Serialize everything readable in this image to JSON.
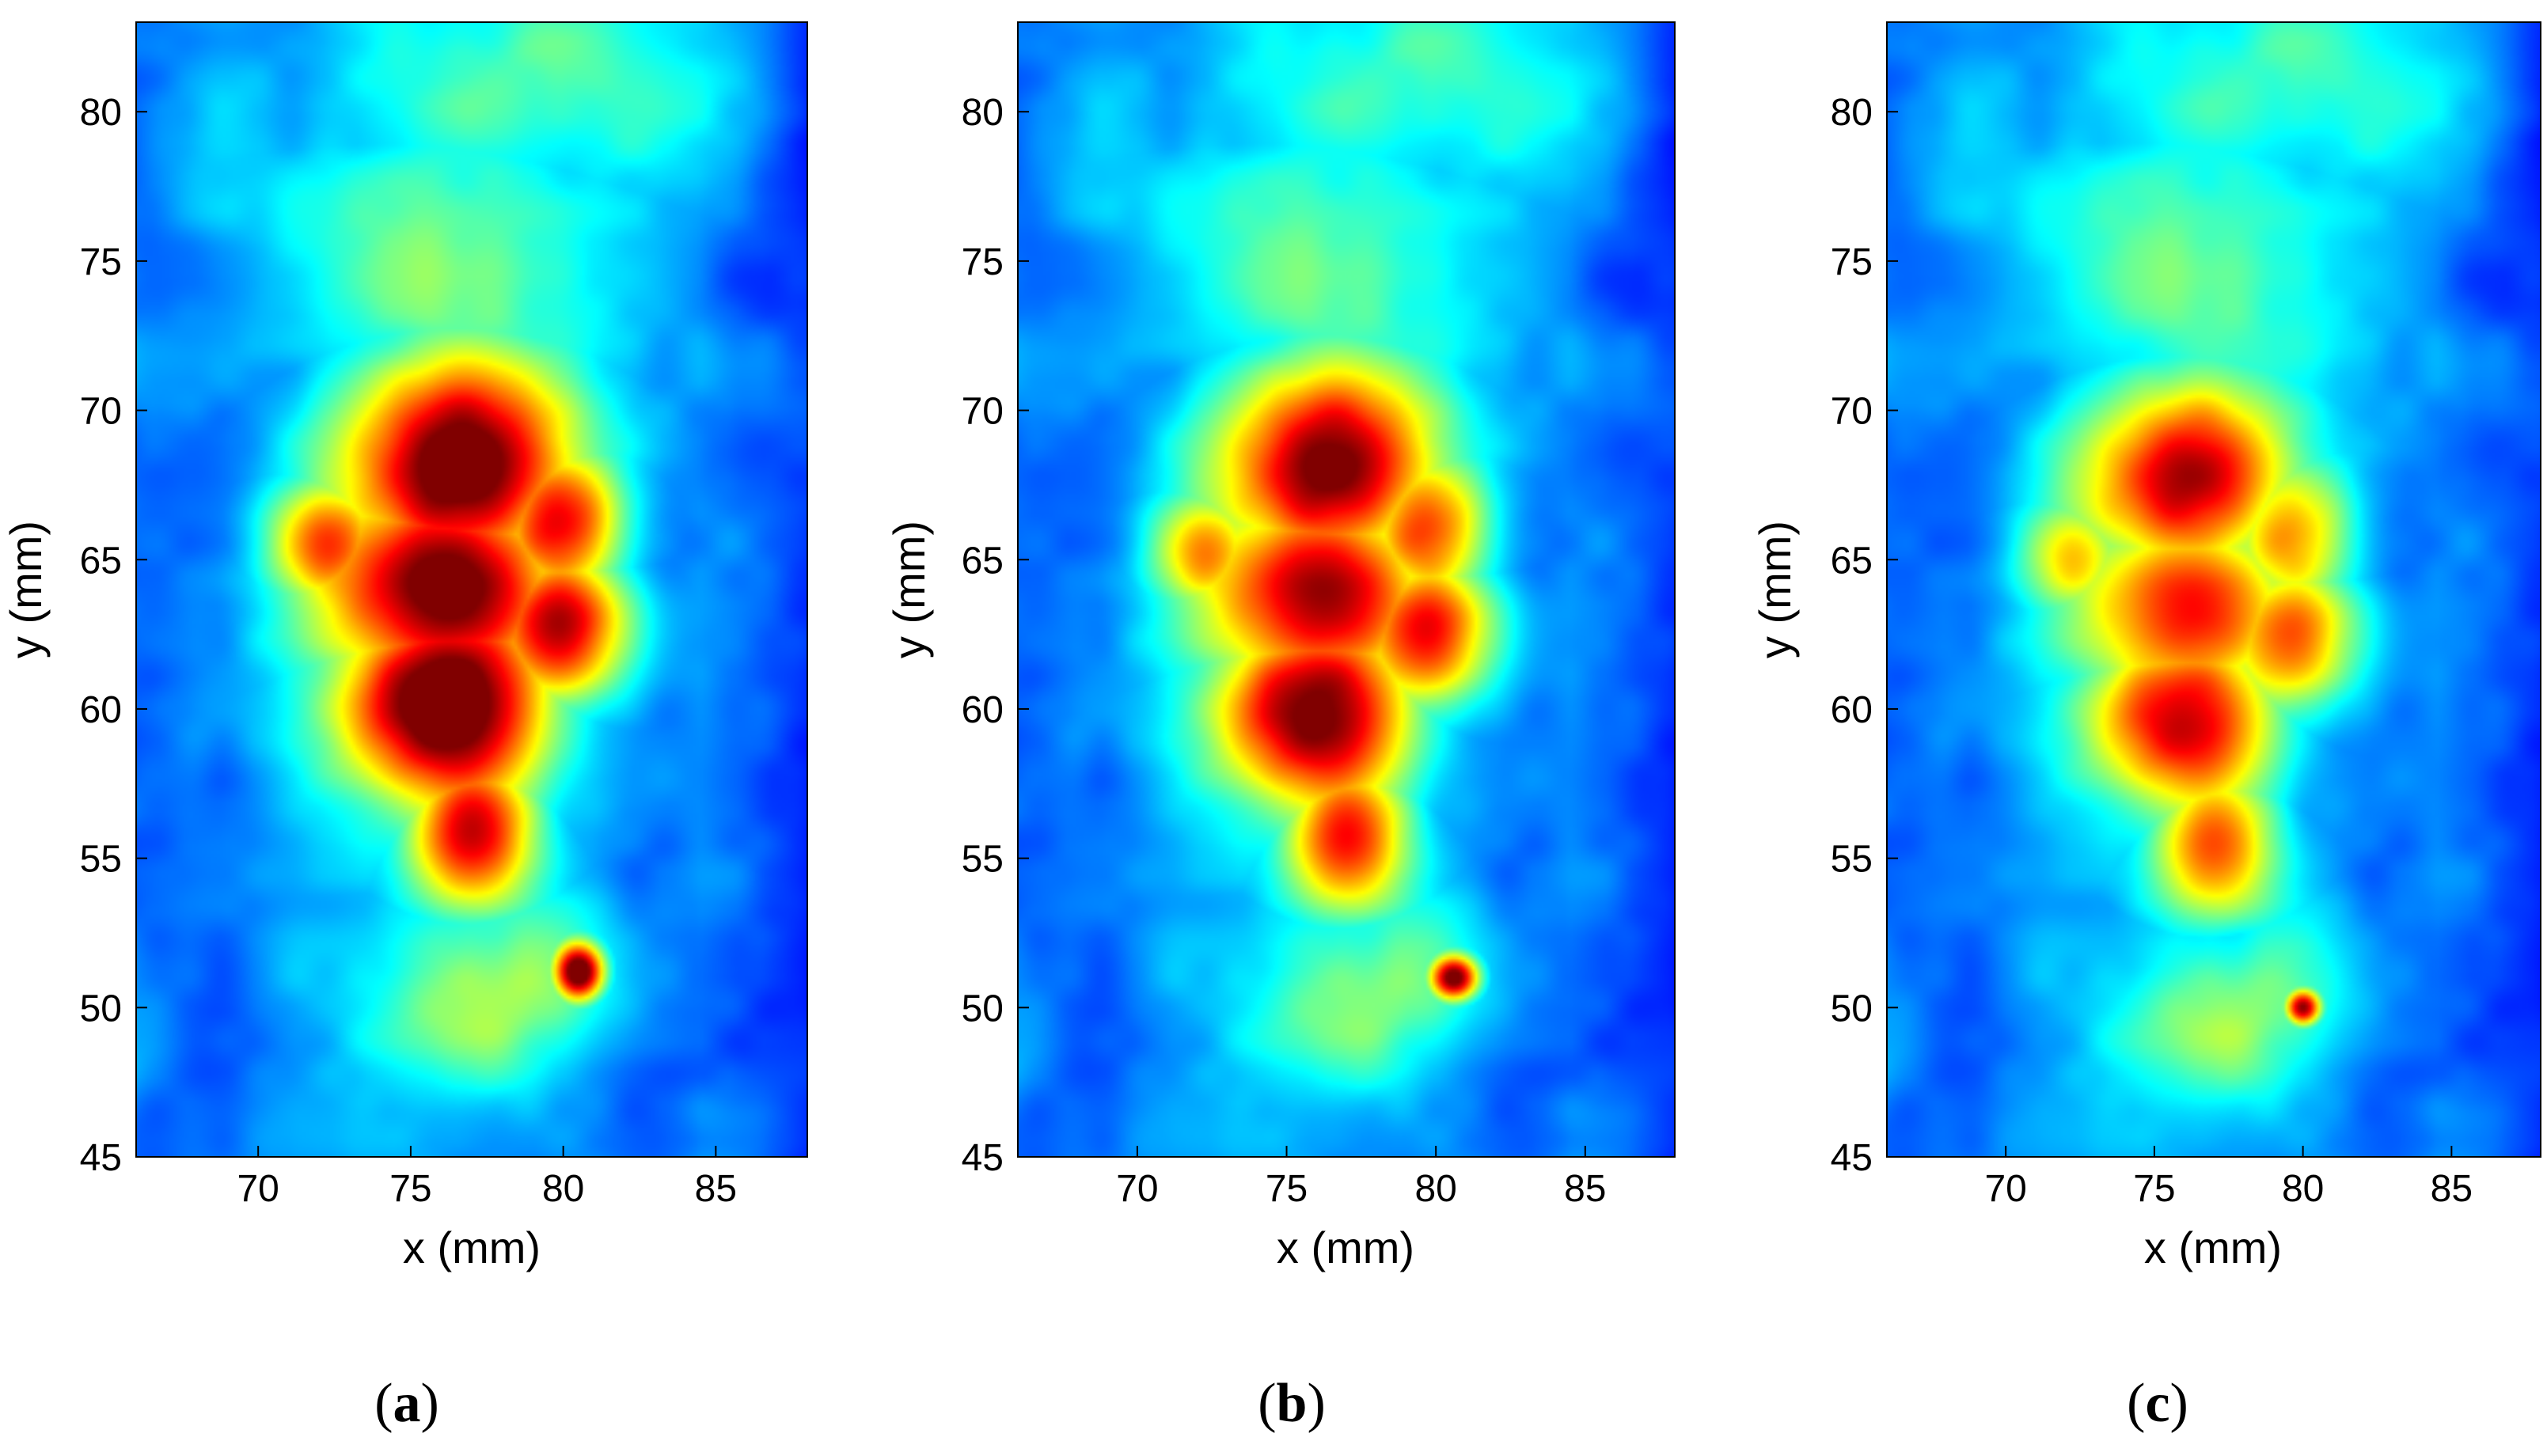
{
  "chart_data": [
    {
      "type": "heatmap",
      "panel": "a",
      "xlabel": "x (mm)",
      "ylabel": "y (mm)",
      "xlim": [
        66,
        88
      ],
      "ylim": [
        45,
        83
      ],
      "xticks": [
        70,
        75,
        80,
        85
      ],
      "yticks": [
        45,
        50,
        55,
        60,
        65,
        70,
        75,
        80
      ],
      "colormap": "jet",
      "intensity_scale": 1.0,
      "hotspots": [
        {
          "x": 76.5,
          "y": 68.0,
          "sx": 2.8,
          "sy": 2.8,
          "v": 1.0
        },
        {
          "x": 76.0,
          "y": 64.2,
          "sx": 3.0,
          "sy": 2.6,
          "v": 1.0
        },
        {
          "x": 76.2,
          "y": 60.2,
          "sx": 2.6,
          "sy": 2.8,
          "v": 1.0
        },
        {
          "x": 79.8,
          "y": 66.2,
          "sx": 1.6,
          "sy": 1.8,
          "v": 0.82
        },
        {
          "x": 79.8,
          "y": 62.8,
          "sx": 1.7,
          "sy": 2.0,
          "v": 0.82
        },
        {
          "x": 72.5,
          "y": 65.5,
          "sx": 1.6,
          "sy": 1.6,
          "v": 0.65
        },
        {
          "x": 77.0,
          "y": 56.0,
          "sx": 1.6,
          "sy": 2.0,
          "v": 0.78
        },
        {
          "x": 80.5,
          "y": 51.2,
          "sx": 0.6,
          "sy": 0.7,
          "v": 1.0
        },
        {
          "x": 77.5,
          "y": 50.5,
          "sx": 2.8,
          "sy": 2.2,
          "v": 0.38
        }
      ],
      "background_plume": [
        {
          "x": 76.5,
          "y": 75.0,
          "sx": 4.0,
          "sy": 4.0,
          "v": 0.28
        },
        {
          "x": 78.0,
          "y": 81.0,
          "sx": 5.0,
          "sy": 3.0,
          "v": 0.25
        }
      ]
    },
    {
      "type": "heatmap",
      "panel": "b",
      "xlabel": "x (mm)",
      "ylabel": "y (mm)",
      "xlim": [
        66,
        88
      ],
      "ylim": [
        45,
        83
      ],
      "xticks": [
        70,
        75,
        80,
        85
      ],
      "yticks": [
        45,
        50,
        55,
        60,
        65,
        70,
        75,
        80
      ],
      "colormap": "jet",
      "intensity_scale": 0.93,
      "hotspots": [
        {
          "x": 76.3,
          "y": 68.0,
          "sx": 2.7,
          "sy": 2.6,
          "v": 1.0
        },
        {
          "x": 76.0,
          "y": 64.0,
          "sx": 2.9,
          "sy": 2.5,
          "v": 0.96
        },
        {
          "x": 76.0,
          "y": 59.8,
          "sx": 2.5,
          "sy": 2.6,
          "v": 0.96
        },
        {
          "x": 79.6,
          "y": 66.0,
          "sx": 1.6,
          "sy": 1.8,
          "v": 0.78
        },
        {
          "x": 79.6,
          "y": 62.6,
          "sx": 1.7,
          "sy": 2.0,
          "v": 0.8
        },
        {
          "x": 72.5,
          "y": 65.2,
          "sx": 1.5,
          "sy": 1.5,
          "v": 0.6
        },
        {
          "x": 77.0,
          "y": 55.8,
          "sx": 1.6,
          "sy": 2.0,
          "v": 0.76
        },
        {
          "x": 80.6,
          "y": 51.0,
          "sx": 0.6,
          "sy": 0.55,
          "v": 1.0
        },
        {
          "x": 77.5,
          "y": 50.5,
          "sx": 2.8,
          "sy": 2.2,
          "v": 0.36
        }
      ],
      "background_plume": [
        {
          "x": 76.5,
          "y": 75.0,
          "sx": 4.0,
          "sy": 4.0,
          "v": 0.27
        },
        {
          "x": 78.0,
          "y": 81.0,
          "sx": 5.0,
          "sy": 3.0,
          "v": 0.24
        }
      ]
    },
    {
      "type": "heatmap",
      "panel": "c",
      "xlabel": "x (mm)",
      "ylabel": "y (mm)",
      "xlim": [
        66,
        88
      ],
      "ylim": [
        45,
        83
      ],
      "xticks": [
        70,
        75,
        80,
        85
      ],
      "yticks": [
        45,
        50,
        55,
        60,
        65,
        70,
        75,
        80
      ],
      "colormap": "jet",
      "intensity_scale": 0.86,
      "hotspots": [
        {
          "x": 76.0,
          "y": 67.6,
          "sx": 2.6,
          "sy": 2.4,
          "v": 1.0
        },
        {
          "x": 76.0,
          "y": 63.5,
          "sx": 2.8,
          "sy": 2.4,
          "v": 0.88
        },
        {
          "x": 76.0,
          "y": 59.5,
          "sx": 2.4,
          "sy": 2.4,
          "v": 0.9
        },
        {
          "x": 79.5,
          "y": 65.8,
          "sx": 1.6,
          "sy": 1.8,
          "v": 0.72
        },
        {
          "x": 79.5,
          "y": 62.4,
          "sx": 1.7,
          "sy": 2.0,
          "v": 0.74
        },
        {
          "x": 72.5,
          "y": 65.0,
          "sx": 1.5,
          "sy": 1.5,
          "v": 0.55
        },
        {
          "x": 77.0,
          "y": 55.5,
          "sx": 1.6,
          "sy": 2.0,
          "v": 0.72
        },
        {
          "x": 80.0,
          "y": 50.0,
          "sx": 0.45,
          "sy": 0.45,
          "v": 1.0
        },
        {
          "x": 77.5,
          "y": 49.8,
          "sx": 2.8,
          "sy": 2.2,
          "v": 0.4
        }
      ],
      "background_plume": [
        {
          "x": 76.5,
          "y": 75.0,
          "sx": 4.0,
          "sy": 4.0,
          "v": 0.3
        },
        {
          "x": 78.0,
          "y": 81.0,
          "sx": 5.0,
          "sy": 3.0,
          "v": 0.26
        }
      ]
    }
  ],
  "captions": [
    {
      "open": "(",
      "letter": "a",
      "close": ")"
    },
    {
      "open": "(",
      "letter": "b",
      "close": ")"
    },
    {
      "open": "(",
      "letter": "c",
      "close": ")"
    }
  ]
}
